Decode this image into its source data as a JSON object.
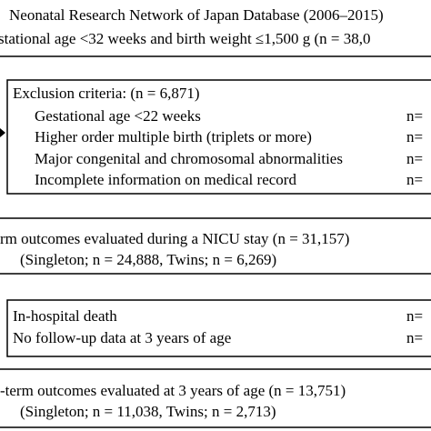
{
  "source_box": {
    "lines": [
      "Neonatal Research Network of Japan Database (2006–2015)",
      "stational age <32 weeks and birth weight ≤1,500 g (n = 38,0"
    ]
  },
  "exclusion_box": {
    "title": "Exclusion criteria: (n = 6,871)",
    "items": [
      {
        "label": "Gestational age <22 weeks",
        "count": "n="
      },
      {
        "label": "Higher order multiple birth (triplets or more)",
        "count": "n="
      },
      {
        "label": "Major congenital and chromosomal abnormalities",
        "count": "n="
      },
      {
        "label": "Incomplete information on medical record",
        "count": "n="
      }
    ]
  },
  "nicu_box": {
    "lines": [
      "rm outcomes evaluated during a NICU stay (n = 31,157)",
      "(Singleton; n = 24,888, Twins; n = 6,269)"
    ]
  },
  "loss_box": {
    "items": [
      {
        "label": "In-hospital death",
        "count": "n="
      },
      {
        "label": "No follow-up data at 3 years of age",
        "count": "n="
      }
    ]
  },
  "followup_box": {
    "lines": [
      "-term outcomes evaluated at 3 years of age (n = 13,751)",
      "(Singleton; n = 11,038, Twins; n = 2,713)"
    ]
  }
}
